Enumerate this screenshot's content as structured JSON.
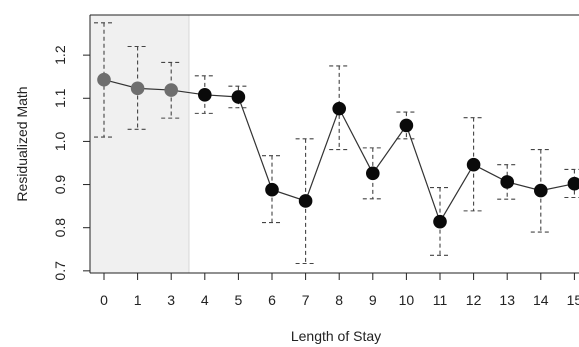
{
  "chart_data": {
    "type": "line",
    "xlabel": "Length of Stay",
    "ylabel": "Residualized Math",
    "categories": [
      "0",
      "1",
      "3",
      "4",
      "5",
      "6",
      "7",
      "8",
      "9",
      "10",
      "11",
      "12",
      "13",
      "14",
      "15"
    ],
    "values": [
      1.143,
      1.123,
      1.119,
      1.108,
      1.103,
      0.888,
      0.862,
      1.076,
      0.926,
      1.037,
      0.814,
      0.946,
      0.906,
      0.886,
      0.902
    ],
    "ci_upper": [
      1.275,
      1.22,
      1.183,
      1.152,
      1.128,
      0.967,
      1.006,
      1.175,
      0.985,
      1.068,
      0.893,
      1.055,
      0.946,
      0.981,
      0.935
    ],
    "ci_lower": [
      1.01,
      1.028,
      1.054,
      1.065,
      1.078,
      0.812,
      0.717,
      0.981,
      0.867,
      1.006,
      0.736,
      0.839,
      0.866,
      0.79,
      0.87
    ],
    "yticks": [
      "0.7",
      "0.8",
      "0.9",
      "1.0",
      "1.1",
      "1.2"
    ],
    "ylim": [
      0.695,
      1.293
    ],
    "shaded_categories": [
      "0",
      "1",
      "3"
    ],
    "colors": {
      "shade": "#f0f0f0",
      "shaded_point": "#6e6e6e",
      "point": "#0a0a0a",
      "line": "#333333",
      "error_bar": "#444444"
    }
  }
}
